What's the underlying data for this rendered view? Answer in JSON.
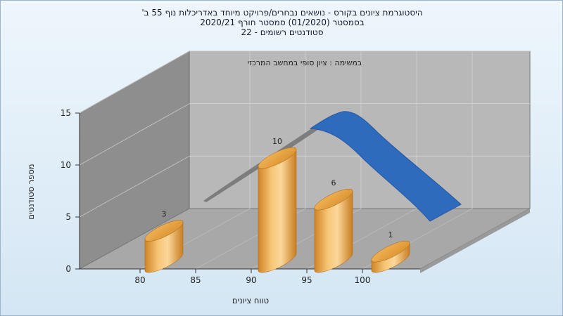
{
  "chart_data": {
    "type": "bar",
    "title_lines": [
      "היסטוגרמת ציונים בקורס - נושאים נבחרים/פרויקט מיוחד באדריכלות נוף 55 ב'",
      "בסמסטר  (01/2020)  סמסטר חורף  2020/21",
      "סטודנטים רשומים - 22"
    ],
    "annotation": "במשימה : ציון סופי במחשב המרכזי",
    "xlabel": "טווח ציונים",
    "ylabel": "מספר סטודנטים",
    "x_ticks": [
      "80",
      "85",
      "90",
      "95",
      "100"
    ],
    "y_ticks": [
      "0",
      "5",
      "10",
      "15"
    ],
    "ylim": [
      0,
      15
    ],
    "bars": [
      {
        "range": "80-85",
        "value": 3,
        "label": "3"
      },
      {
        "range": "90-95",
        "value": 10,
        "label": "10"
      },
      {
        "range": "95-100",
        "value": 6,
        "label": "6"
      },
      {
        "range": "100-105",
        "value": 1,
        "label": "1"
      }
    ],
    "grid": true,
    "colors": {
      "bar": "#e8a23c",
      "bar_light": "#fbd79a",
      "curve": "#2f6bbd",
      "wall": "#b5b5b5",
      "floor": "#a9a9a9",
      "side_wall": "#8c8c8c"
    }
  }
}
